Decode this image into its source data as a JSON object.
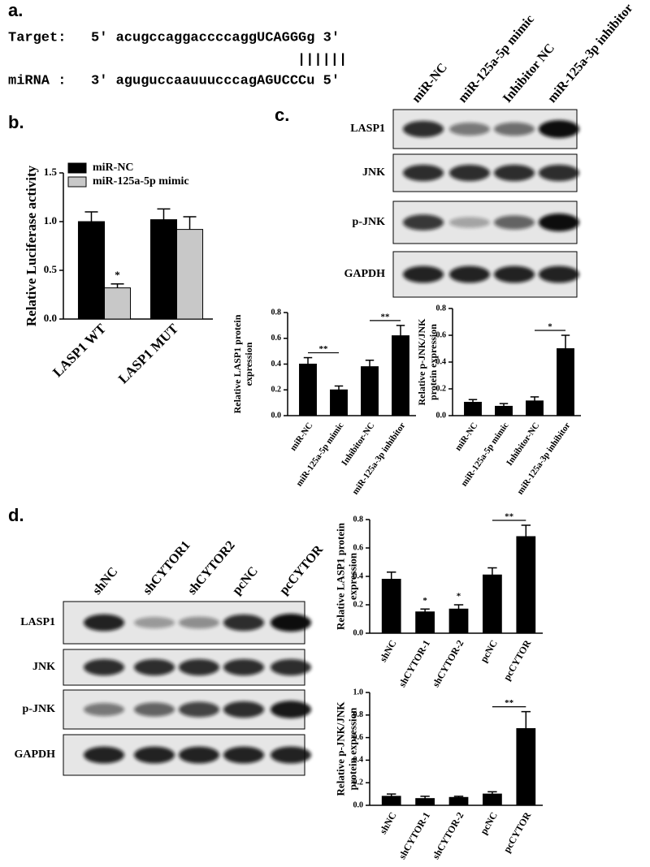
{
  "panel_labels": [
    "a.",
    "b.",
    "c.",
    "d."
  ],
  "sequence": {
    "target_label": "Target:",
    "target": "5' acugccaggaccccaggUCAGGGg 3'",
    "pairing": "||||||",
    "mirna_label": "miRNA :",
    "mirna": "3' aguguccaauuucccagAGUCCCu 5'"
  },
  "blot_c": {
    "lanes": [
      "miR-NC",
      "miR-125a-5p mimic",
      "Inhibitor NC",
      "miR-125a-3p inhibitor"
    ],
    "rows": [
      "LASP1",
      "JNK",
      "p-JNK",
      "GAPDH"
    ]
  },
  "blot_d": {
    "lanes": [
      "shNC",
      "shCYTOR1",
      "shCYTOR2",
      "pcNC",
      "pcCYTOR"
    ],
    "rows": [
      "LASP1",
      "JNK",
      "p-JNK",
      "GAPDH"
    ]
  },
  "chart_data": [
    {
      "type": "bar",
      "ylabel": [
        "Relative Luciferase activity"
      ],
      "categories": [
        "LASP1 WT",
        "LASP1 MUT"
      ],
      "series": [
        {
          "name": "miR-NC",
          "color": "#000000",
          "values": [
            1.0,
            1.02
          ],
          "errors": [
            0.1,
            0.11
          ]
        },
        {
          "name": "miR-125a-5p mimic",
          "color": "#c8c8c8",
          "values": [
            0.32,
            0.92
          ],
          "errors": [
            0.04,
            0.13
          ]
        }
      ],
      "ylim": [
        0,
        1.5
      ],
      "yticks": [
        {
          "value": 0,
          "label": "0.0"
        },
        0.5,
        {
          "value": 1,
          "label": "1.0"
        },
        1.5
      ],
      "legend": "top-left",
      "annotations": [
        {
          "text": "*",
          "span": [
            0,
            0
          ],
          "series": 1
        }
      ]
    },
    {
      "type": "bar",
      "ylabel": [
        "Relative LASP1 protein",
        "expression"
      ],
      "categories": [
        "miR-NC",
        "miR-125a-5p mimic",
        "Inhibitor-NC",
        "miR-125a-3p inhibitor"
      ],
      "series": [
        {
          "color": "#000000",
          "values": [
            0.4,
            0.2,
            0.38,
            0.62
          ],
          "errors": [
            0.05,
            0.03,
            0.05,
            0.08
          ]
        }
      ],
      "ylim": [
        0,
        0.8
      ],
      "yticks": [
        {
          "value": 0,
          "label": "0.0"
        },
        0.2,
        0.4,
        0.6,
        0.8
      ],
      "annotations": [
        {
          "text": "**",
          "span": [
            0,
            1
          ],
          "series": 0
        },
        {
          "text": "**",
          "span": [
            2,
            3
          ],
          "series": 0
        }
      ]
    },
    {
      "type": "bar",
      "ylabel": [
        "Relative p-JNK/JNK",
        "protein expression"
      ],
      "categories": [
        "miR-NC",
        "miR-125a-5p mimic",
        "Inhibitor-NC",
        "miR-125a-3p inhibitor"
      ],
      "series": [
        {
          "color": "#000000",
          "values": [
            0.1,
            0.07,
            0.11,
            0.5
          ],
          "errors": [
            0.02,
            0.02,
            0.03,
            0.1
          ]
        }
      ],
      "ylim": [
        0,
        0.8
      ],
      "yticks": [
        {
          "value": 0,
          "label": "0.0"
        },
        0.2,
        0.4,
        0.6,
        0.8
      ],
      "annotations": [
        {
          "text": "*",
          "span": [
            2,
            3
          ],
          "series": 0
        }
      ]
    },
    {
      "type": "bar",
      "ylabel": [
        "Relative LASP1 protein",
        "expression"
      ],
      "categories": [
        "shNC",
        "shCYTOR-1",
        "shCYTOR-2",
        "pcNC",
        "pcCYTOR"
      ],
      "series": [
        {
          "color": "#000000",
          "values": [
            0.38,
            0.15,
            0.17,
            0.41,
            0.68
          ],
          "errors": [
            0.05,
            0.02,
            0.03,
            0.05,
            0.08
          ]
        }
      ],
      "ylim": [
        0,
        0.8
      ],
      "yticks": [
        {
          "value": 0,
          "label": "0.0"
        },
        0.2,
        0.4,
        0.6,
        0.8
      ],
      "annotations": [
        {
          "text": "*",
          "span": [
            1,
            1
          ],
          "series": 0
        },
        {
          "text": "*",
          "span": [
            2,
            2
          ],
          "series": 0
        },
        {
          "text": "**",
          "span": [
            3,
            4
          ],
          "series": 0
        }
      ]
    },
    {
      "type": "bar",
      "ylabel": [
        "Relative p-JNK/JNK",
        "protein expression"
      ],
      "categories": [
        "shNC",
        "shCYTOR-1",
        "shCYTOR-2",
        "pcNC",
        "pcCYTOR"
      ],
      "series": [
        {
          "color": "#000000",
          "values": [
            0.08,
            0.06,
            0.07,
            0.1,
            0.68
          ],
          "errors": [
            0.02,
            0.02,
            0.01,
            0.02,
            0.15
          ]
        }
      ],
      "ylim": [
        0,
        1.0
      ],
      "yticks": [
        {
          "value": 0,
          "label": "0.0"
        },
        0.2,
        0.4,
        0.6,
        0.8,
        {
          "value": 1,
          "label": "1.0"
        }
      ],
      "annotations": [
        {
          "text": "**",
          "span": [
            3,
            4
          ],
          "series": 0
        }
      ]
    }
  ]
}
